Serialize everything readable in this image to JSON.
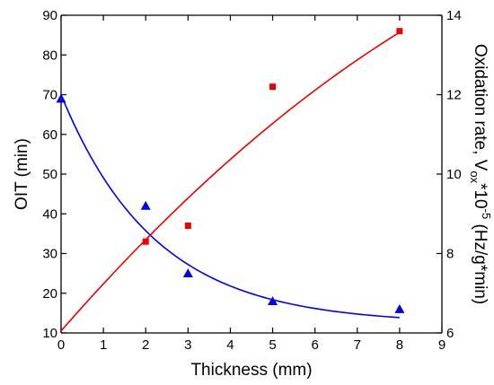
{
  "chart_data": {
    "type": "scatter",
    "xlabel": "Thickness (mm)",
    "ylabel_left": "OIT (min)",
    "ylabel_right_parts": [
      "Oxidation rate, V",
      "ox",
      "*10",
      "-5",
      " (Hz/g*min)"
    ],
    "xlim": [
      0,
      9
    ],
    "ylim_left": [
      10,
      90
    ],
    "ylim_right": [
      6,
      14
    ],
    "x_ticks": [
      0,
      1,
      2,
      3,
      4,
      5,
      6,
      7,
      8,
      9
    ],
    "y_left_ticks": [
      10,
      20,
      30,
      40,
      50,
      60,
      70,
      80,
      90
    ],
    "y_right_ticks": [
      6,
      8,
      10,
      12,
      14
    ],
    "grid": false,
    "series": [
      {
        "axis": "left",
        "marker": "triangle",
        "color": "#0000ee",
        "x": [
          0,
          2,
          3,
          5,
          8
        ],
        "y": [
          69,
          42,
          25,
          18,
          16
        ],
        "fit": {
          "type": "exponential_decay",
          "y0": 12.3,
          "A": 57.7,
          "tau": 2.22,
          "x_range": [
            0,
            8
          ]
        }
      },
      {
        "axis": "right",
        "marker": "square",
        "color": "#ee0000",
        "x": [
          2,
          3,
          5,
          8
        ],
        "y": [
          8.3,
          8.7,
          12.2,
          13.6
        ],
        "fit": {
          "type": "quadratic",
          "coef": [
            6.05,
            1.22,
            -0.035
          ],
          "x_range": [
            0,
            8
          ]
        }
      }
    ]
  }
}
